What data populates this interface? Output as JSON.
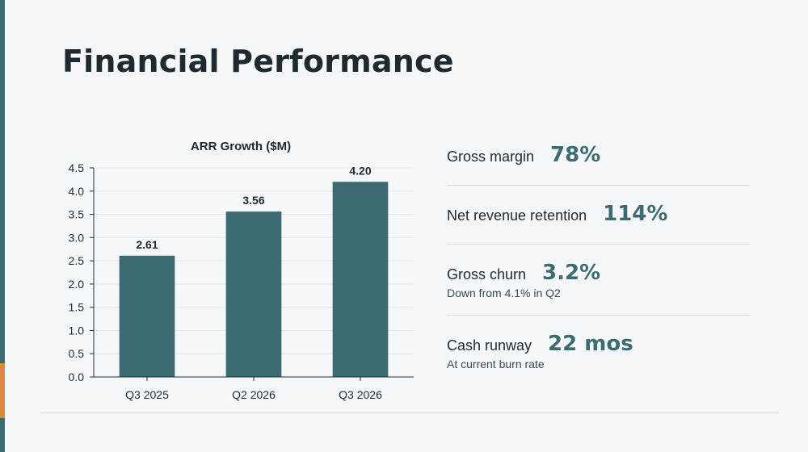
{
  "slide": {
    "title": "Financial Performance"
  },
  "colors": {
    "accent": "#3d6b72",
    "highlight": "#d98a3b",
    "bar": "#3d6b72"
  },
  "chart_data": {
    "type": "bar",
    "title": "ARR Growth ($M)",
    "categories": [
      "Q3 2025",
      "Q2 2026",
      "Q3 2026"
    ],
    "values": [
      2.61,
      3.56,
      4.2
    ],
    "value_labels": [
      "2.61",
      "3.56",
      "4.20"
    ],
    "ylim": [
      0,
      4.5
    ],
    "yticks": [
      "0.0",
      "0.5",
      "1.0",
      "1.5",
      "2.0",
      "2.5",
      "3.0",
      "3.5",
      "4.0",
      "4.5"
    ],
    "xlabel": "",
    "ylabel": "",
    "grid": true,
    "legend": "none"
  },
  "metrics": [
    {
      "label": "Gross margin",
      "value": "78%",
      "sub": ""
    },
    {
      "label": "Net revenue retention",
      "value": "114%",
      "sub": ""
    },
    {
      "label": "Gross churn",
      "value": "3.2%",
      "sub": "Down from 4.1% in Q2"
    },
    {
      "label": "Cash runway",
      "value": "22 mos",
      "sub": "At current burn rate"
    }
  ]
}
